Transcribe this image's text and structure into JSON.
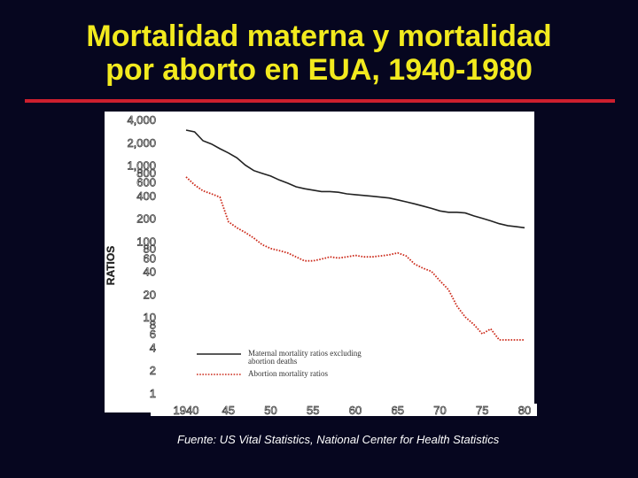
{
  "slide": {
    "title_line1": "Mortalidad materna y mortalidad",
    "title_line2": "por aborto en EUA, 1940-1980",
    "source": "Fuente:  US Vital Statistics, National Center for Health Statistics"
  },
  "colors": {
    "background": "#06061f",
    "title": "#f2ea1e",
    "rule": "#cc1f2e",
    "maternal_line": "#222222",
    "abortion_line": "#cc2a1a"
  },
  "chart_data": {
    "type": "line",
    "title": "",
    "xlabel": "",
    "ylabel": "RATIOS",
    "yscale": "log",
    "xlim": [
      1940,
      1980
    ],
    "ylim": [
      1,
      4000
    ],
    "x_tick_labels": [
      "1940",
      "45",
      "50",
      "55",
      "60",
      "65",
      "70",
      "75",
      "80"
    ],
    "x_tick_values": [
      1940,
      1945,
      1950,
      1955,
      1960,
      1965,
      1970,
      1975,
      1980
    ],
    "y_tick_labels": [
      "1",
      "2",
      "4",
      "6",
      "8",
      "10",
      "20",
      "40",
      "60",
      "80",
      "100",
      "200",
      "400",
      "600",
      "800",
      "1,000",
      "2,000",
      "4,000"
    ],
    "y_tick_values": [
      1,
      2,
      4,
      6,
      8,
      10,
      20,
      40,
      60,
      80,
      100,
      200,
      400,
      600,
      800,
      1000,
      2000,
      4000
    ],
    "legend_position": "lower-left",
    "series": [
      {
        "name": "Maternal mortality ratios excluding abortion deaths",
        "style": "solid",
        "x": [
          1940,
          1941,
          1942,
          1943,
          1944,
          1945,
          1946,
          1947,
          1948,
          1949,
          1950,
          1951,
          1952,
          1953,
          1954,
          1955,
          1956,
          1957,
          1958,
          1959,
          1960,
          1961,
          1962,
          1963,
          1964,
          1965,
          1966,
          1967,
          1968,
          1969,
          1970,
          1971,
          1972,
          1973,
          1974,
          1975,
          1976,
          1977,
          1978,
          1979,
          1980
        ],
        "values": [
          2900,
          2750,
          2100,
          1900,
          1650,
          1450,
          1250,
          1000,
          850,
          780,
          720,
          640,
          580,
          520,
          490,
          470,
          450,
          450,
          440,
          420,
          410,
          400,
          390,
          380,
          370,
          350,
          330,
          310,
          290,
          270,
          250,
          240,
          240,
          235,
          215,
          200,
          185,
          170,
          160,
          155,
          150
        ]
      },
      {
        "name": "Abortion mortality ratios",
        "style": "dotted",
        "x": [
          1940,
          1941,
          1942,
          1943,
          1944,
          1945,
          1946,
          1947,
          1948,
          1949,
          1950,
          1951,
          1952,
          1953,
          1954,
          1955,
          1956,
          1957,
          1958,
          1959,
          1960,
          1961,
          1962,
          1963,
          1964,
          1965,
          1966,
          1967,
          1968,
          1969,
          1970,
          1971,
          1972,
          1973,
          1974,
          1975,
          1976,
          1977,
          1978,
          1979,
          1980
        ],
        "values": [
          700,
          550,
          460,
          420,
          380,
          180,
          150,
          130,
          110,
          90,
          80,
          75,
          70,
          62,
          55,
          55,
          58,
          62,
          60,
          62,
          65,
          62,
          62,
          64,
          66,
          70,
          64,
          50,
          44,
          40,
          30,
          23,
          14,
          10,
          8,
          6,
          7,
          5,
          5,
          5,
          5
        ]
      }
    ]
  }
}
